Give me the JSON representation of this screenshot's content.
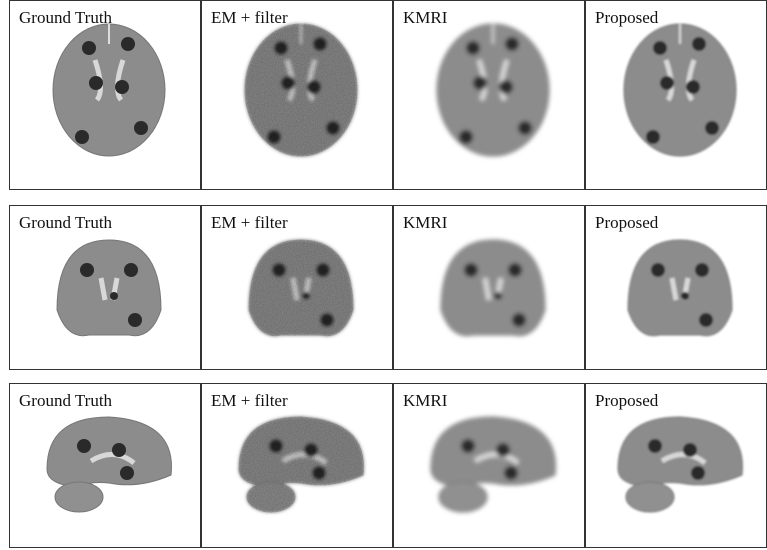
{
  "rows": [
    {
      "panels": [
        {
          "label": "Ground Truth"
        },
        {
          "label": "EM + filter"
        },
        {
          "label": "KMRI"
        },
        {
          "label": "Proposed"
        }
      ]
    },
    {
      "panels": [
        {
          "label": "Ground Truth"
        },
        {
          "label": "EM + filter"
        },
        {
          "label": "KMRI"
        },
        {
          "label": "Proposed"
        }
      ]
    },
    {
      "panels": [
        {
          "label": "Ground Truth"
        },
        {
          "label": "EM + filter"
        },
        {
          "label": "KMRI"
        },
        {
          "label": "Proposed"
        }
      ]
    }
  ]
}
